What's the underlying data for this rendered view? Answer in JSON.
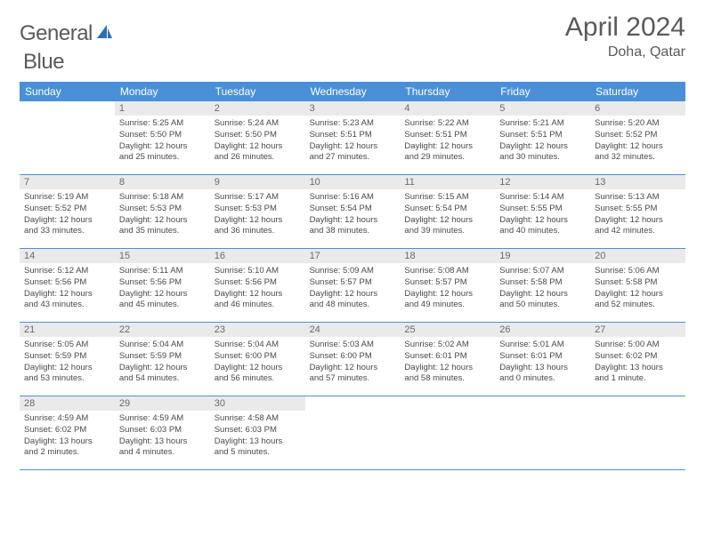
{
  "brand": {
    "name_a": "General",
    "name_b": "Blue"
  },
  "title": "April 2024",
  "location": "Doha, Qatar",
  "colors": {
    "header_bg": "#4a90d9",
    "daynum_bg": "#eaeaea",
    "rule": "#4a90d9"
  },
  "day_names": [
    "Sunday",
    "Monday",
    "Tuesday",
    "Wednesday",
    "Thursday",
    "Friday",
    "Saturday"
  ],
  "weeks": [
    [
      {
        "n": "",
        "sunrise": "",
        "sunset": "",
        "dl1": "",
        "dl2": ""
      },
      {
        "n": "1",
        "sunrise": "Sunrise: 5:25 AM",
        "sunset": "Sunset: 5:50 PM",
        "dl1": "Daylight: 12 hours",
        "dl2": "and 25 minutes."
      },
      {
        "n": "2",
        "sunrise": "Sunrise: 5:24 AM",
        "sunset": "Sunset: 5:50 PM",
        "dl1": "Daylight: 12 hours",
        "dl2": "and 26 minutes."
      },
      {
        "n": "3",
        "sunrise": "Sunrise: 5:23 AM",
        "sunset": "Sunset: 5:51 PM",
        "dl1": "Daylight: 12 hours",
        "dl2": "and 27 minutes."
      },
      {
        "n": "4",
        "sunrise": "Sunrise: 5:22 AM",
        "sunset": "Sunset: 5:51 PM",
        "dl1": "Daylight: 12 hours",
        "dl2": "and 29 minutes."
      },
      {
        "n": "5",
        "sunrise": "Sunrise: 5:21 AM",
        "sunset": "Sunset: 5:51 PM",
        "dl1": "Daylight: 12 hours",
        "dl2": "and 30 minutes."
      },
      {
        "n": "6",
        "sunrise": "Sunrise: 5:20 AM",
        "sunset": "Sunset: 5:52 PM",
        "dl1": "Daylight: 12 hours",
        "dl2": "and 32 minutes."
      }
    ],
    [
      {
        "n": "7",
        "sunrise": "Sunrise: 5:19 AM",
        "sunset": "Sunset: 5:52 PM",
        "dl1": "Daylight: 12 hours",
        "dl2": "and 33 minutes."
      },
      {
        "n": "8",
        "sunrise": "Sunrise: 5:18 AM",
        "sunset": "Sunset: 5:53 PM",
        "dl1": "Daylight: 12 hours",
        "dl2": "and 35 minutes."
      },
      {
        "n": "9",
        "sunrise": "Sunrise: 5:17 AM",
        "sunset": "Sunset: 5:53 PM",
        "dl1": "Daylight: 12 hours",
        "dl2": "and 36 minutes."
      },
      {
        "n": "10",
        "sunrise": "Sunrise: 5:16 AM",
        "sunset": "Sunset: 5:54 PM",
        "dl1": "Daylight: 12 hours",
        "dl2": "and 38 minutes."
      },
      {
        "n": "11",
        "sunrise": "Sunrise: 5:15 AM",
        "sunset": "Sunset: 5:54 PM",
        "dl1": "Daylight: 12 hours",
        "dl2": "and 39 minutes."
      },
      {
        "n": "12",
        "sunrise": "Sunrise: 5:14 AM",
        "sunset": "Sunset: 5:55 PM",
        "dl1": "Daylight: 12 hours",
        "dl2": "and 40 minutes."
      },
      {
        "n": "13",
        "sunrise": "Sunrise: 5:13 AM",
        "sunset": "Sunset: 5:55 PM",
        "dl1": "Daylight: 12 hours",
        "dl2": "and 42 minutes."
      }
    ],
    [
      {
        "n": "14",
        "sunrise": "Sunrise: 5:12 AM",
        "sunset": "Sunset: 5:56 PM",
        "dl1": "Daylight: 12 hours",
        "dl2": "and 43 minutes."
      },
      {
        "n": "15",
        "sunrise": "Sunrise: 5:11 AM",
        "sunset": "Sunset: 5:56 PM",
        "dl1": "Daylight: 12 hours",
        "dl2": "and 45 minutes."
      },
      {
        "n": "16",
        "sunrise": "Sunrise: 5:10 AM",
        "sunset": "Sunset: 5:56 PM",
        "dl1": "Daylight: 12 hours",
        "dl2": "and 46 minutes."
      },
      {
        "n": "17",
        "sunrise": "Sunrise: 5:09 AM",
        "sunset": "Sunset: 5:57 PM",
        "dl1": "Daylight: 12 hours",
        "dl2": "and 48 minutes."
      },
      {
        "n": "18",
        "sunrise": "Sunrise: 5:08 AM",
        "sunset": "Sunset: 5:57 PM",
        "dl1": "Daylight: 12 hours",
        "dl2": "and 49 minutes."
      },
      {
        "n": "19",
        "sunrise": "Sunrise: 5:07 AM",
        "sunset": "Sunset: 5:58 PM",
        "dl1": "Daylight: 12 hours",
        "dl2": "and 50 minutes."
      },
      {
        "n": "20",
        "sunrise": "Sunrise: 5:06 AM",
        "sunset": "Sunset: 5:58 PM",
        "dl1": "Daylight: 12 hours",
        "dl2": "and 52 minutes."
      }
    ],
    [
      {
        "n": "21",
        "sunrise": "Sunrise: 5:05 AM",
        "sunset": "Sunset: 5:59 PM",
        "dl1": "Daylight: 12 hours",
        "dl2": "and 53 minutes."
      },
      {
        "n": "22",
        "sunrise": "Sunrise: 5:04 AM",
        "sunset": "Sunset: 5:59 PM",
        "dl1": "Daylight: 12 hours",
        "dl2": "and 54 minutes."
      },
      {
        "n": "23",
        "sunrise": "Sunrise: 5:04 AM",
        "sunset": "Sunset: 6:00 PM",
        "dl1": "Daylight: 12 hours",
        "dl2": "and 56 minutes."
      },
      {
        "n": "24",
        "sunrise": "Sunrise: 5:03 AM",
        "sunset": "Sunset: 6:00 PM",
        "dl1": "Daylight: 12 hours",
        "dl2": "and 57 minutes."
      },
      {
        "n": "25",
        "sunrise": "Sunrise: 5:02 AM",
        "sunset": "Sunset: 6:01 PM",
        "dl1": "Daylight: 12 hours",
        "dl2": "and 58 minutes."
      },
      {
        "n": "26",
        "sunrise": "Sunrise: 5:01 AM",
        "sunset": "Sunset: 6:01 PM",
        "dl1": "Daylight: 13 hours",
        "dl2": "and 0 minutes."
      },
      {
        "n": "27",
        "sunrise": "Sunrise: 5:00 AM",
        "sunset": "Sunset: 6:02 PM",
        "dl1": "Daylight: 13 hours",
        "dl2": "and 1 minute."
      }
    ],
    [
      {
        "n": "28",
        "sunrise": "Sunrise: 4:59 AM",
        "sunset": "Sunset: 6:02 PM",
        "dl1": "Daylight: 13 hours",
        "dl2": "and 2 minutes."
      },
      {
        "n": "29",
        "sunrise": "Sunrise: 4:59 AM",
        "sunset": "Sunset: 6:03 PM",
        "dl1": "Daylight: 13 hours",
        "dl2": "and 4 minutes."
      },
      {
        "n": "30",
        "sunrise": "Sunrise: 4:58 AM",
        "sunset": "Sunset: 6:03 PM",
        "dl1": "Daylight: 13 hours",
        "dl2": "and 5 minutes."
      },
      {
        "n": "",
        "sunrise": "",
        "sunset": "",
        "dl1": "",
        "dl2": ""
      },
      {
        "n": "",
        "sunrise": "",
        "sunset": "",
        "dl1": "",
        "dl2": ""
      },
      {
        "n": "",
        "sunrise": "",
        "sunset": "",
        "dl1": "",
        "dl2": ""
      },
      {
        "n": "",
        "sunrise": "",
        "sunset": "",
        "dl1": "",
        "dl2": ""
      }
    ]
  ]
}
